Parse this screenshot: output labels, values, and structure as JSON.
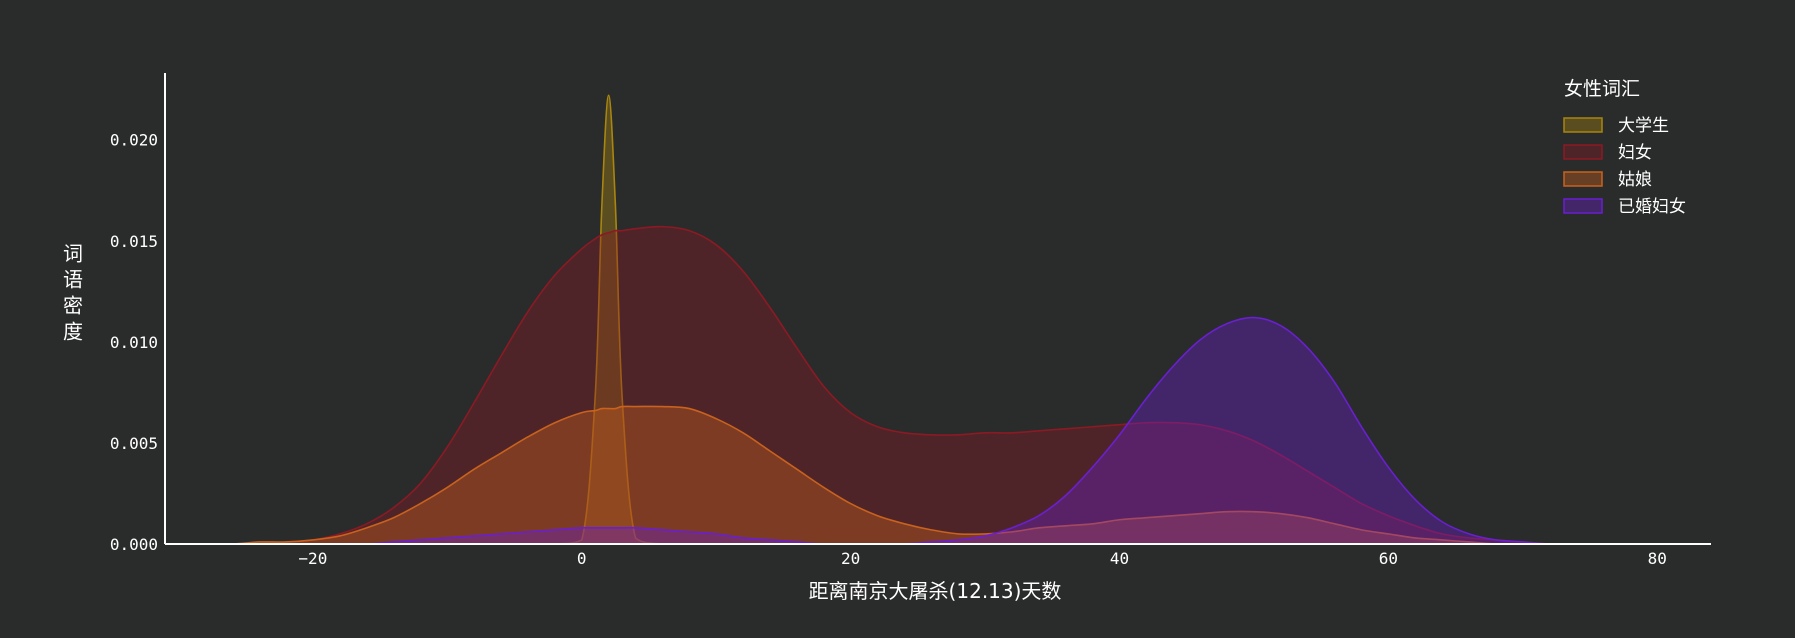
{
  "chart_data": {
    "type": "area",
    "title": "",
    "xlabel": "距离南京大屠杀(12.13)天数",
    "ylabel": "词语密度",
    "xlim": [
      -31,
      84
    ],
    "ylim": [
      0,
      0.0233
    ],
    "xticks": [
      -20,
      0,
      20,
      40,
      60,
      80
    ],
    "xtick_labels": [
      "−20",
      "0",
      "20",
      "40",
      "60",
      "80"
    ],
    "yticks": [
      0,
      0.005,
      0.01,
      0.015,
      0.02
    ],
    "ytick_labels": [
      "0.000",
      "0.005",
      "0.010",
      "0.015",
      "0.020"
    ],
    "grid": false,
    "legend": {
      "title": "女性词汇",
      "position": "top-right"
    },
    "x": [
      -30,
      -28,
      -26,
      -24,
      -22,
      -20,
      -18,
      -16,
      -14,
      -12,
      -10,
      -8,
      -6,
      -4,
      -2,
      0,
      1,
      1.5,
      2,
      2.5,
      3,
      4,
      6,
      8,
      10,
      12,
      14,
      16,
      18,
      20,
      22,
      24,
      26,
      28,
      30,
      32,
      34,
      36,
      38,
      40,
      42,
      44,
      46,
      48,
      50,
      52,
      54,
      56,
      58,
      60,
      62,
      64,
      66,
      68,
      70,
      72,
      74,
      76,
      78,
      80
    ],
    "series": [
      {
        "name": "大学生",
        "color": "#a8860f",
        "values": [
          0,
          0,
          0,
          0,
          0,
          0,
          0,
          0,
          0,
          0,
          0,
          0,
          0,
          0,
          0,
          0.0002,
          0.0073,
          0.0168,
          0.0222,
          0.0168,
          0.0073,
          0.0003,
          0,
          0,
          0,
          0,
          0,
          0,
          0,
          0,
          0,
          0,
          0,
          0,
          0,
          0,
          0,
          0,
          0,
          0,
          0,
          0,
          0,
          0,
          0,
          0,
          0,
          0,
          0,
          0,
          0,
          0,
          0,
          0,
          0,
          0,
          0,
          0,
          0,
          0
        ]
      },
      {
        "name": "妇女",
        "color": "#8b1a24",
        "values": [
          0,
          0,
          0,
          0,
          0.0001,
          0.0002,
          0.0005,
          0.001,
          0.0018,
          0.003,
          0.0048,
          0.007,
          0.0093,
          0.0115,
          0.0133,
          0.0146,
          0.0151,
          0.0153,
          0.0154,
          0.0155,
          0.0155,
          0.0156,
          0.0157,
          0.0155,
          0.0148,
          0.0135,
          0.0117,
          0.0097,
          0.0078,
          0.0065,
          0.0058,
          0.0055,
          0.0054,
          0.0054,
          0.0055,
          0.0055,
          0.0056,
          0.0057,
          0.0058,
          0.0059,
          0.006,
          0.006,
          0.0059,
          0.0056,
          0.0051,
          0.0044,
          0.0036,
          0.0028,
          0.002,
          0.0014,
          0.0009,
          0.0005,
          0.0003,
          0.0002,
          0.0001,
          0,
          0,
          0,
          0,
          0
        ]
      },
      {
        "name": "姑娘",
        "color": "#c8621e",
        "values": [
          0,
          0,
          0,
          0.0001,
          0.0001,
          0.0002,
          0.0004,
          0.0008,
          0.0013,
          0.002,
          0.0028,
          0.0037,
          0.0045,
          0.0053,
          0.006,
          0.0065,
          0.0066,
          0.0067,
          0.0067,
          0.0067,
          0.0068,
          0.0068,
          0.0068,
          0.0067,
          0.0062,
          0.0055,
          0.0046,
          0.0037,
          0.0028,
          0.002,
          0.0014,
          0.001,
          0.0007,
          0.0005,
          0.0005,
          0.0006,
          0.0008,
          0.0009,
          0.001,
          0.0012,
          0.0013,
          0.0014,
          0.0015,
          0.0016,
          0.0016,
          0.0015,
          0.0013,
          0.001,
          0.0007,
          0.0005,
          0.0003,
          0.0002,
          0.0001,
          0,
          0,
          0,
          0,
          0,
          0,
          0
        ]
      },
      {
        "name": "已婚妇女",
        "color": "#6a1fd0",
        "values": [
          0,
          0,
          0,
          0,
          0,
          0,
          0,
          0,
          0.0001,
          0.0002,
          0.0003,
          0.0004,
          0.0005,
          0.0006,
          0.0007,
          0.0008,
          0.0008,
          0.0008,
          0.0008,
          0.0008,
          0.0008,
          0.0008,
          0.0007,
          0.0006,
          0.0005,
          0.0003,
          0.0002,
          0.0001,
          0,
          0,
          0,
          0,
          0.0001,
          0.0002,
          0.0004,
          0.0008,
          0.0014,
          0.0024,
          0.0038,
          0.0054,
          0.0072,
          0.0088,
          0.0101,
          0.0109,
          0.0112,
          0.0108,
          0.0097,
          0.008,
          0.0058,
          0.0038,
          0.0022,
          0.0011,
          0.0005,
          0.0002,
          0.0001,
          0,
          0,
          0,
          0,
          0
        ]
      }
    ]
  }
}
